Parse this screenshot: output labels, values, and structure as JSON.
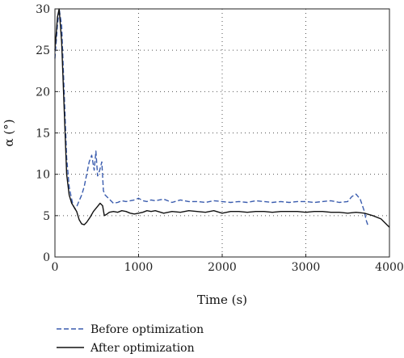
{
  "chart_data": {
    "type": "line",
    "title": "",
    "xlabel": "Time (s)",
    "ylabel": "α (°)",
    "xlim": [
      0,
      4000
    ],
    "ylim": [
      0,
      30
    ],
    "xticks": [
      0,
      1000,
      2000,
      3000,
      4000
    ],
    "yticks": [
      0,
      5,
      10,
      15,
      20,
      25,
      30
    ],
    "xtick_labels": [
      "0",
      "1000",
      "2000",
      "3000",
      "4000"
    ],
    "ytick_labels": [
      "0",
      "5",
      "10",
      "15",
      "20",
      "25",
      "30"
    ],
    "grid": true,
    "legend_position": "bottom-left",
    "series": [
      {
        "name": "Before optimization",
        "style": "dashed",
        "color": "#3a5cae",
        "x": [
          0,
          30,
          50,
          80,
          110,
          140,
          170,
          195,
          215,
          240,
          265,
          290,
          320,
          350,
          380,
          410,
          440,
          470,
          490,
          510,
          535,
          560,
          580,
          600,
          650,
          700,
          750,
          800,
          850,
          900,
          950,
          1000,
          1050,
          1100,
          1150,
          1200,
          1300,
          1400,
          1500,
          1600,
          1700,
          1800,
          1900,
          2000,
          2100,
          2200,
          2300,
          2400,
          2500,
          2600,
          2700,
          2800,
          2900,
          3000,
          3100,
          3200,
          3300,
          3400,
          3500,
          3550,
          3600,
          3650,
          3700,
          3720,
          3740
        ],
        "y": [
          24,
          28,
          30,
          28,
          20,
          12,
          8.5,
          7.2,
          6.3,
          5.8,
          6.2,
          6.8,
          7.5,
          8.5,
          10,
          11.5,
          12.3,
          10.5,
          12.8,
          9.8,
          10.5,
          11.5,
          8,
          7.5,
          7,
          6.5,
          6.6,
          6.8,
          6.7,
          6.8,
          6.9,
          7.1,
          6.8,
          6.7,
          6.9,
          6.8,
          7.0,
          6.6,
          6.9,
          6.7,
          6.7,
          6.6,
          6.8,
          6.7,
          6.6,
          6.7,
          6.6,
          6.8,
          6.7,
          6.6,
          6.7,
          6.6,
          6.7,
          6.7,
          6.6,
          6.7,
          6.8,
          6.6,
          6.7,
          7.3,
          7.6,
          7.0,
          5.5,
          4.5,
          3.9
        ]
      },
      {
        "name": "After optimization",
        "style": "solid",
        "color": "#111111",
        "x": [
          0,
          30,
          50,
          80,
          110,
          140,
          170,
          200,
          230,
          260,
          290,
          320,
          350,
          380,
          420,
          460,
          500,
          540,
          570,
          590,
          610,
          650,
          700,
          750,
          800,
          850,
          900,
          950,
          1000,
          1050,
          1100,
          1150,
          1200,
          1300,
          1400,
          1500,
          1600,
          1700,
          1800,
          1900,
          2000,
          2100,
          2200,
          2300,
          2400,
          2500,
          2600,
          2700,
          2800,
          2900,
          3000,
          3100,
          3200,
          3300,
          3400,
          3500,
          3600,
          3700,
          3800,
          3900,
          4000
        ],
        "y": [
          25,
          29,
          30,
          26,
          18,
          10,
          7.5,
          6.5,
          6.0,
          5.5,
          4.5,
          4.0,
          3.9,
          4.2,
          4.8,
          5.5,
          6.0,
          6.5,
          6.2,
          5.0,
          5.1,
          5.4,
          5.5,
          5.4,
          5.6,
          5.5,
          5.3,
          5.2,
          5.3,
          5.4,
          5.6,
          5.5,
          5.6,
          5.3,
          5.5,
          5.4,
          5.6,
          5.5,
          5.4,
          5.6,
          5.3,
          5.5,
          5.5,
          5.4,
          5.5,
          5.5,
          5.4,
          5.5,
          5.5,
          5.5,
          5.4,
          5.5,
          5.5,
          5.4,
          5.4,
          5.3,
          5.4,
          5.3,
          5.0,
          4.6,
          3.6
        ]
      }
    ]
  }
}
